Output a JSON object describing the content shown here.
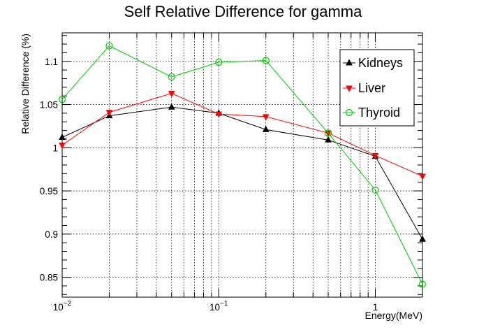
{
  "chart_data": {
    "type": "line",
    "title": "Self Relative Difference for gamma",
    "xlabel": "Energy(MeV)",
    "ylabel": "Relative Difference (%)",
    "x_scale": "log",
    "xlim": [
      0.01,
      2
    ],
    "ylim": [
      0.827,
      1.133
    ],
    "grid": true,
    "legend_position": "top-right",
    "x_tick_labels": [
      {
        "value": 0.01,
        "base": "10",
        "exp": "−2"
      },
      {
        "value": 0.1,
        "base": "10",
        "exp": "−1"
      },
      {
        "value": 1,
        "base": "1",
        "exp": ""
      }
    ],
    "y_ticks": [
      0.85,
      0.9,
      0.95,
      1,
      1.05,
      1.1
    ],
    "y_tick_labels": [
      "0.85",
      "0.9",
      "0.95",
      "1",
      "1.05",
      "1.1"
    ],
    "x": [
      0.01,
      0.02,
      0.05,
      0.1,
      0.2,
      0.5,
      1,
      2
    ],
    "series": [
      {
        "name": "Kidneys",
        "color": "#000000",
        "marker": "triangle-up",
        "values": [
          1.012,
          1.037,
          1.047,
          1.04,
          1.021,
          1.009,
          0.99,
          0.894
        ]
      },
      {
        "name": "Liver",
        "color": "#ff0000",
        "marker": "triangle-down",
        "values": [
          1.003,
          1.041,
          1.063,
          1.039,
          1.036,
          1.017,
          0.991,
          0.967
        ]
      },
      {
        "name": "Thyroid",
        "color": "#00cc00",
        "marker": "open-circle",
        "values": [
          1.056,
          1.118,
          1.082,
          1.099,
          1.101,
          1.017,
          0.951,
          0.842
        ]
      }
    ]
  }
}
